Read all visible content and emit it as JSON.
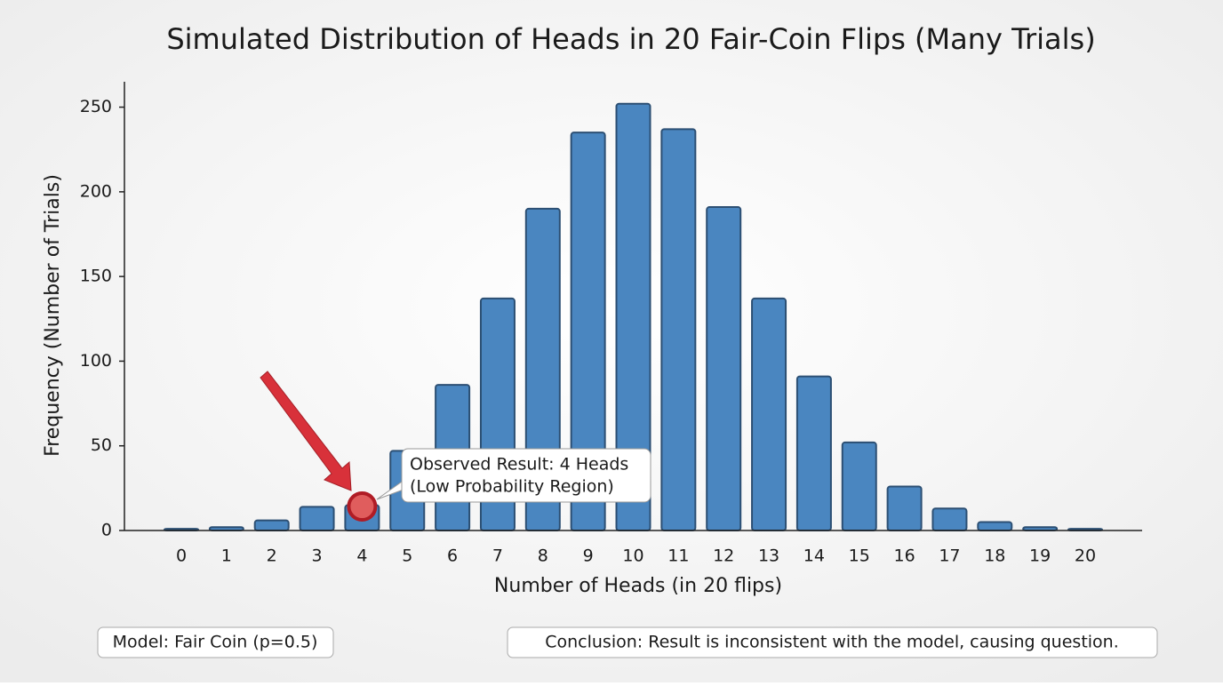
{
  "chart_data": {
    "type": "bar",
    "title": "Simulated Distribution of Heads in 20 Fair-Coin Flips (Many Trials)",
    "x_label": "Number of Heads (in 20 flips)",
    "y_label": "Frequency (Number of Trials)",
    "categories": [
      "0",
      "1",
      "2",
      "3",
      "4",
      "5",
      "6",
      "7",
      "8",
      "9",
      "10",
      "11",
      "12",
      "13",
      "14",
      "15",
      "16",
      "17",
      "18",
      "19",
      "20"
    ],
    "values": [
      1,
      2,
      6,
      14,
      15,
      47,
      86,
      137,
      190,
      235,
      252,
      237,
      191,
      137,
      91,
      52,
      26,
      13,
      5,
      2,
      1
    ],
    "color": "#4a86c0",
    "ylim": [
      0,
      265
    ],
    "yticks": [
      0,
      50,
      100,
      150,
      200,
      250
    ],
    "annotation": [
      "Observed Result: 4 Heads",
      "(Low Probability Region)"
    ],
    "notes": [
      "Model: Fair Coin (p=0.5)",
      "Conclusion: Result is inconsistent with the model, causing question."
    ]
  }
}
